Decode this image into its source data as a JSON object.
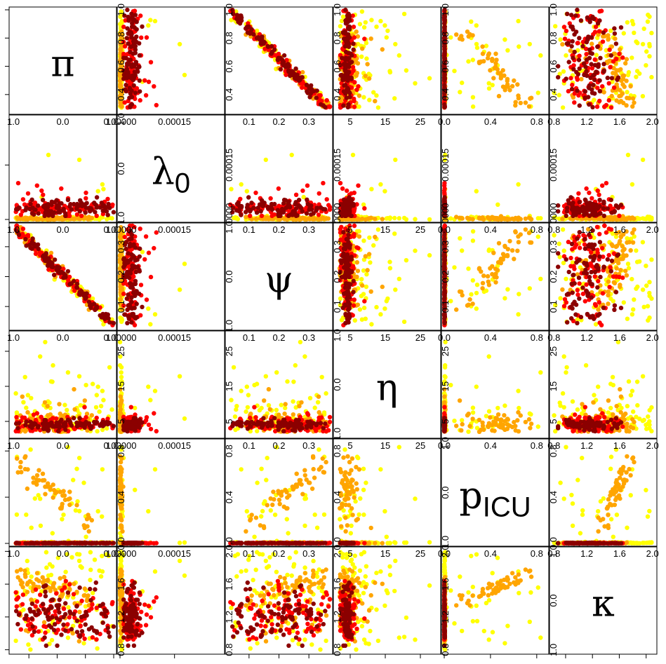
{
  "chart_data": {
    "type": "scatter",
    "title": "",
    "layout": "pairs-matrix",
    "variables": [
      {
        "id": "pi",
        "label_main": "π",
        "label_sub": "",
        "ticks": [
          "0.4",
          "0.6",
          "0.8",
          "1.0"
        ],
        "tick_values": [
          0.4,
          0.6,
          0.8,
          1.0
        ],
        "range": [
          0.28,
          1.0
        ]
      },
      {
        "id": "lambda0",
        "label_main": "λ",
        "label_sub": "0",
        "ticks": [
          "0.00000",
          "0.00015"
        ],
        "tick_values": [
          0.0,
          0.00015
        ],
        "range": [
          0.0,
          0.00028
        ]
      },
      {
        "id": "psi",
        "label_main": "ψ",
        "label_sub": "",
        "ticks": [
          "0.1",
          "0.2",
          "0.3"
        ],
        "tick_values": [
          0.1,
          0.2,
          0.3
        ],
        "range": [
          0.03,
          0.37
        ]
      },
      {
        "id": "eta",
        "label_main": "η",
        "label_sub": "",
        "ticks": [
          "5",
          "15",
          "25"
        ],
        "tick_values": [
          5,
          15,
          25
        ],
        "range": [
          1,
          30
        ]
      },
      {
        "id": "picu",
        "label_main": "p",
        "label_sub": "ICU",
        "ticks": [
          "0.0",
          "0.4",
          "0.8"
        ],
        "tick_values": [
          0.0,
          0.4,
          0.8
        ],
        "range": [
          0.0,
          0.88
        ]
      },
      {
        "id": "kappa",
        "label_main": "κ",
        "label_sub": "",
        "ticks": [
          "0.8",
          "1.2",
          "1.6",
          "2.0"
        ],
        "tick_values": [
          0.8,
          1.2,
          1.6,
          2.0
        ],
        "range": [
          0.78,
          2.02
        ]
      }
    ],
    "groups": [
      {
        "color": "#FFFF00"
      },
      {
        "color": "#FFA500"
      },
      {
        "color": "#FF0000"
      },
      {
        "color": "#8B0000"
      }
    ],
    "empty_axis_ticks": [
      "1.0",
      "0.0",
      "1.0"
    ],
    "samples_per_group": 90,
    "seed": 20240611,
    "xlabel": "",
    "ylabel": "",
    "grid": false,
    "legend": "none"
  }
}
